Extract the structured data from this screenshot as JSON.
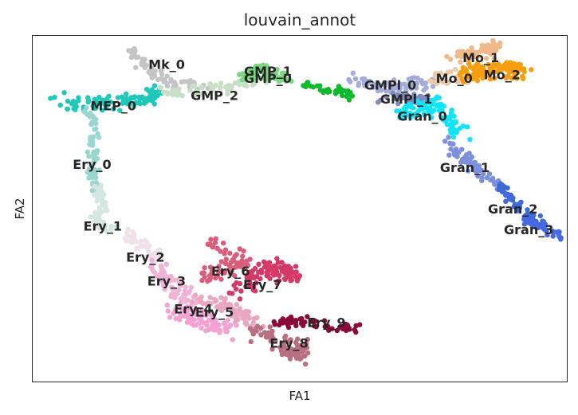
{
  "chart_data": {
    "type": "scatter",
    "title": "louvain_annot",
    "xlabel": "FA1",
    "ylabel": "FA2",
    "xlim": [
      0,
      100
    ],
    "ylim": [
      0,
      100
    ],
    "ticks": "none",
    "legend": "on data",
    "clusters": [
      {
        "name": "MEP_0",
        "color": "#1fc8b8",
        "label": [
          15,
          80
        ],
        "path": [
          [
            5,
            81
          ],
          [
            10,
            80
          ],
          [
            15,
            81
          ],
          [
            20,
            82
          ],
          [
            23,
            83
          ]
        ],
        "spread": 1.2,
        "n": 90
      },
      {
        "name": "Mk_0",
        "color": "#c4c4c4",
        "label": [
          25,
          92
        ],
        "path": [
          [
            18,
            97
          ],
          [
            21,
            91
          ],
          [
            25,
            87
          ],
          [
            29,
            86
          ],
          [
            33,
            85
          ]
        ],
        "spread": 0.8,
        "n": 70
      },
      {
        "name": "GMP_2",
        "color": "#c7dfc4",
        "label": [
          34,
          83
        ],
        "path": [
          [
            24,
            84
          ],
          [
            29,
            84
          ],
          [
            34,
            85
          ],
          [
            40,
            86
          ],
          [
            45,
            88
          ]
        ],
        "spread": 0.8,
        "n": 60
      },
      {
        "name": "GMP_1",
        "color": "#7dd682",
        "label": [
          44,
          90
        ],
        "path": [
          [
            39,
            88
          ],
          [
            42,
            90
          ],
          [
            44,
            89
          ],
          [
            48,
            88
          ]
        ],
        "spread": 1.0,
        "n": 60
      },
      {
        "name": "GMP_0",
        "color": "#0eba2d",
        "label": [
          44,
          88
        ],
        "path": [
          [
            50,
            86
          ],
          [
            54,
            85
          ],
          [
            57,
            84
          ],
          [
            60,
            83
          ]
        ],
        "spread": 0.7,
        "n": 35
      },
      {
        "name": "GMPl_0",
        "color": "#a4acdc",
        "label": [
          67,
          86
        ],
        "path": [
          [
            60,
            87
          ],
          [
            64,
            86
          ],
          [
            68,
            85
          ],
          [
            72,
            86
          ],
          [
            75,
            87
          ]
        ],
        "spread": 1.1,
        "n": 70
      },
      {
        "name": "GMPl_1",
        "color": "#8089bd",
        "label": [
          70,
          82
        ],
        "path": [
          [
            65,
            82
          ],
          [
            70,
            82
          ],
          [
            74,
            82
          ]
        ],
        "spread": 0.8,
        "n": 40
      },
      {
        "name": "Mo_0",
        "color": "#efc9a7",
        "label": [
          79,
          88
        ],
        "path": [
          [
            75,
            87
          ],
          [
            78,
            88
          ],
          [
            81,
            88
          ]
        ],
        "spread": 1.0,
        "n": 40
      },
      {
        "name": "Mo_1",
        "color": "#efb98a",
        "label": [
          84,
          94
        ],
        "path": [
          [
            79,
            94
          ],
          [
            82,
            95
          ],
          [
            85,
            96
          ],
          [
            87,
            98
          ]
        ],
        "spread": 1.2,
        "n": 60
      },
      {
        "name": "Mo_2",
        "color": "#f59f10",
        "label": [
          88,
          89
        ],
        "path": [
          [
            81,
            89
          ],
          [
            85,
            90
          ],
          [
            89,
            91
          ],
          [
            92,
            90
          ]
        ],
        "spread": 1.5,
        "n": 110
      },
      {
        "name": "Gran_0",
        "color": "#12e4f8",
        "label": [
          73,
          77
        ],
        "path": [
          [
            68,
            77
          ],
          [
            72,
            79
          ],
          [
            76,
            80
          ],
          [
            78,
            75
          ],
          [
            80,
            72
          ]
        ],
        "spread": 1.3,
        "n": 90
      },
      {
        "name": "Gran_1",
        "color": "#7d8fdd",
        "label": [
          81,
          62
        ],
        "path": [
          [
            78,
            69
          ],
          [
            81,
            65
          ],
          [
            84,
            61
          ],
          [
            87,
            57
          ]
        ],
        "spread": 0.9,
        "n": 60
      },
      {
        "name": "Gran_2",
        "color": "#3f6bd6",
        "label": [
          90,
          50
        ],
        "path": [
          [
            87,
            57
          ],
          [
            90,
            52
          ],
          [
            93,
            48
          ],
          [
            96,
            45
          ]
        ],
        "spread": 0.7,
        "n": 60
      },
      {
        "name": "Gran_3",
        "color": "#436ae4",
        "label": [
          93,
          44
        ],
        "path": [
          [
            92,
            47
          ],
          [
            95,
            45
          ],
          [
            99,
            42
          ]
        ],
        "spread": 0.6,
        "n": 40
      },
      {
        "name": "Ery_0",
        "color": "#9ad6d0",
        "label": [
          11,
          63
        ],
        "path": [
          [
            10,
            79
          ],
          [
            12,
            73
          ],
          [
            11,
            66
          ],
          [
            11,
            60
          ],
          [
            12,
            55
          ]
        ],
        "spread": 0.7,
        "n": 70
      },
      {
        "name": "Ery_1",
        "color": "#d3e6e0",
        "label": [
          13,
          45
        ],
        "path": [
          [
            12,
            56
          ],
          [
            13,
            50
          ],
          [
            11,
            46
          ],
          [
            15,
            44
          ]
        ],
        "spread": 0.8,
        "n": 60
      },
      {
        "name": "Ery_2",
        "color": "#eee1ea",
        "label": [
          21,
          36
        ],
        "path": [
          [
            17,
            43
          ],
          [
            21,
            39
          ],
          [
            24,
            35
          ]
        ],
        "spread": 1.0,
        "n": 40
      },
      {
        "name": "Ery_3",
        "color": "#f1b3d5",
        "label": [
          25,
          29
        ],
        "path": [
          [
            22,
            34
          ],
          [
            25,
            30
          ],
          [
            27,
            26
          ],
          [
            30,
            24
          ]
        ],
        "spread": 1.4,
        "n": 70
      },
      {
        "name": "Ery_4",
        "color": "#f4a2d2",
        "label": [
          30,
          21
        ],
        "path": [
          [
            26,
            22
          ],
          [
            30,
            18
          ],
          [
            34,
            16
          ],
          [
            37,
            15
          ]
        ],
        "spread": 1.4,
        "n": 80
      },
      {
        "name": "Ery_5",
        "color": "#e7a8c0",
        "label": [
          34,
          20
        ],
        "path": [
          [
            31,
            24
          ],
          [
            35,
            22
          ],
          [
            39,
            20
          ],
          [
            42,
            16
          ]
        ],
        "spread": 1.3,
        "n": 70
      },
      {
        "name": "Ery_6",
        "color": "#db5d7c",
        "label": [
          37,
          32
        ],
        "path": [
          [
            32,
            30
          ],
          [
            36,
            33
          ],
          [
            40,
            34
          ],
          [
            33,
            41
          ]
        ],
        "spread": 1.3,
        "n": 70
      },
      {
        "name": "Ery_7",
        "color": "#d33a67",
        "label": [
          43,
          28
        ],
        "path": [
          [
            39,
            27
          ],
          [
            42,
            31
          ],
          [
            46,
            33
          ],
          [
            48,
            30
          ]
        ],
        "spread": 1.6,
        "n": 100
      },
      {
        "name": "Ery_8",
        "color": "#b87080",
        "label": [
          48,
          11
        ],
        "path": [
          [
            42,
            15
          ],
          [
            45,
            12
          ],
          [
            48,
            9
          ],
          [
            50,
            7
          ],
          [
            51,
            12
          ]
        ],
        "spread": 1.4,
        "n": 80
      },
      {
        "name": "Ery_9",
        "color": "#8a0a38",
        "label": [
          55,
          17
        ],
        "path": [
          [
            46,
            17
          ],
          [
            51,
            17
          ],
          [
            56,
            16
          ],
          [
            61,
            15
          ]
        ],
        "spread": 0.8,
        "n": 60
      }
    ]
  }
}
